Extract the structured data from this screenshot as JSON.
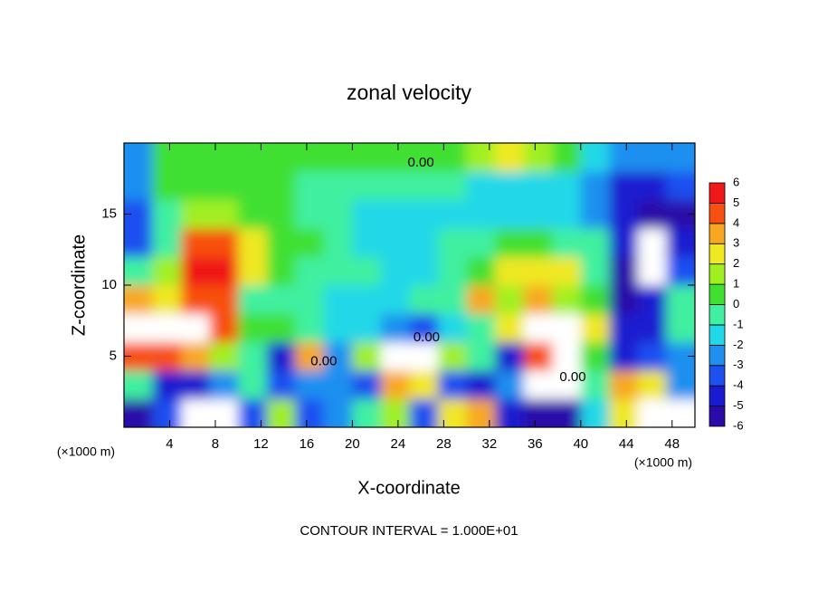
{
  "chart_data": {
    "type": "contour",
    "title": "zonal velocity",
    "x_label": "X-coordinate",
    "y_label": "Z-coordinate",
    "x_units": "(×1000 m)",
    "y_units": "(×1000 m)",
    "footer": "CONTOUR INTERVAL = 1.000E+01",
    "xlim": [
      0,
      50
    ],
    "ylim": [
      0,
      20
    ],
    "xticks": [
      4,
      8,
      12,
      16,
      20,
      24,
      28,
      32,
      36,
      40,
      44,
      48
    ],
    "yticks": [
      5,
      10,
      15
    ],
    "x": [
      1.25,
      3.75,
      6.25,
      8.75,
      11.25,
      13.75,
      16.25,
      18.75,
      21.25,
      23.75,
      26.25,
      28.75,
      31.25,
      33.75,
      36.25,
      38.75,
      41.25,
      43.75,
      46.25,
      48.75
    ],
    "y": [
      1,
      3,
      5,
      7,
      9,
      11,
      13,
      15,
      17,
      19
    ],
    "values": [
      [
        -5,
        -3,
        8,
        8,
        -3,
        2,
        -3,
        -2,
        0,
        2,
        -3,
        3,
        4,
        -4,
        -5,
        -5,
        -1,
        3,
        8,
        8
      ],
      [
        0,
        -4,
        -4,
        -2,
        0,
        -3,
        -2,
        -2,
        -3,
        4,
        3,
        -3,
        -4,
        -2,
        8,
        8,
        0,
        4,
        3,
        -2
      ],
      [
        5,
        5,
        4,
        2,
        0,
        -4,
        4,
        -2,
        2,
        8,
        8,
        2,
        0,
        -4,
        5,
        8,
        1,
        -4,
        -3,
        -2
      ],
      [
        8,
        8,
        8,
        5,
        1,
        0.5,
        0,
        -1.5,
        -1.5,
        -2,
        -3,
        -1,
        0,
        3,
        8,
        8,
        3,
        -4,
        -4,
        0
      ],
      [
        4,
        3,
        5,
        5,
        0,
        0,
        0,
        -1,
        -1,
        -1,
        -0.5,
        0,
        4,
        2,
        4,
        2,
        1,
        -5,
        -4,
        0
      ],
      [
        0,
        2,
        6,
        6,
        3,
        0.5,
        0,
        0,
        -0.5,
        -1,
        -1,
        0,
        1,
        3,
        3,
        3,
        0,
        -5,
        8,
        -3
      ],
      [
        -3,
        0,
        5,
        5,
        3,
        0.5,
        0.5,
        0,
        -1,
        -1,
        -1,
        0,
        0,
        1,
        1,
        0,
        0,
        -4,
        8,
        -4
      ],
      [
        -3,
        0,
        2,
        2,
        1,
        0.5,
        0,
        -0.5,
        -1,
        -1,
        -1,
        -1,
        -1,
        -1.5,
        -1.5,
        -1.5,
        -2,
        -4,
        -5,
        -5
      ],
      [
        -2,
        0.5,
        1,
        1,
        0.5,
        0.5,
        0,
        0,
        0,
        0,
        0,
        -0.5,
        -1,
        -1.5,
        -1.5,
        -1.5,
        -2,
        -4,
        -4,
        -3
      ],
      [
        -2,
        0.5,
        0.5,
        0.5,
        0.5,
        0.5,
        0.5,
        0.5,
        0.5,
        0.5,
        1,
        1,
        2,
        3,
        2,
        1,
        -1,
        -2,
        -2,
        -2
      ]
    ],
    "levels": [
      -6,
      -5,
      -4,
      -3,
      -2,
      -1,
      0,
      1,
      2,
      3,
      4,
      5,
      6
    ],
    "colors": [
      "#2a0aa8",
      "#1a1ad0",
      "#1e50f0",
      "#1e90f0",
      "#20d8e8",
      "#40f0a0",
      "#40e030",
      "#a0f020",
      "#f0e820",
      "#f8a820",
      "#f85010",
      "#f01818",
      "#f07878"
    ],
    "above_color": "#ffffff",
    "contour_labels": [
      {
        "value": 0,
        "label": "0.00",
        "x": 26,
        "y": 18.6
      },
      {
        "value": 0,
        "label": "0.00",
        "x": 26.5,
        "y": 6.3
      },
      {
        "value": 0,
        "label": "0.00",
        "x": 39.3,
        "y": 3.5
      },
      {
        "value": 0,
        "label": "0.00",
        "x": 17.5,
        "y": 4.6
      }
    ]
  }
}
